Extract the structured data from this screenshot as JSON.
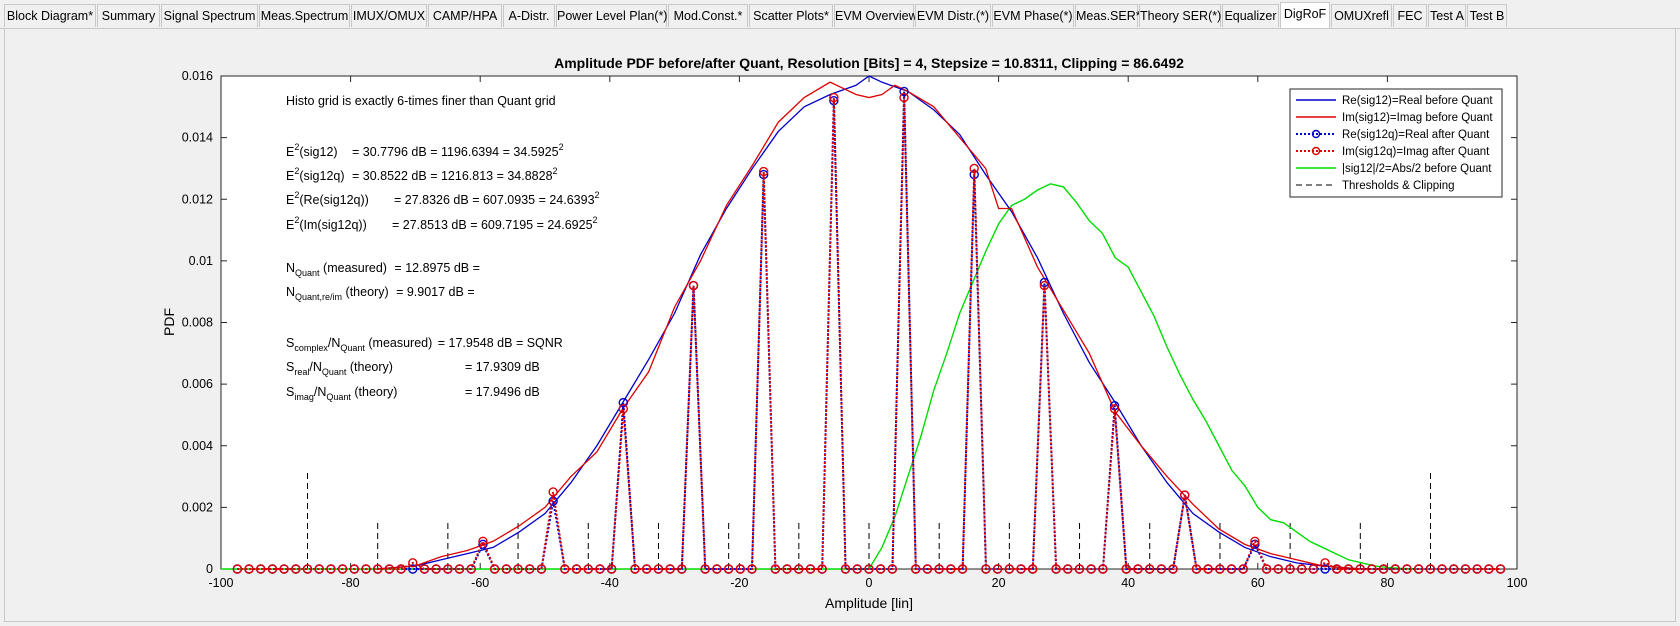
{
  "tabs": [
    {
      "label": "Block Diagram*"
    },
    {
      "label": "Summary"
    },
    {
      "label": "Signal Spectrum"
    },
    {
      "label": "Meas.Spectrum"
    },
    {
      "label": "IMUX/OMUX"
    },
    {
      "label": "CAMP/HPA"
    },
    {
      "label": "A-Distr."
    },
    {
      "label": "Power Level Plan(*)"
    },
    {
      "label": "Mod.Const.*"
    },
    {
      "label": "Scatter Plots*"
    },
    {
      "label": "EVM Overview"
    },
    {
      "label": "EVM Distr.(*)"
    },
    {
      "label": "EVM Phase(*)"
    },
    {
      "label": "Meas.SER*"
    },
    {
      "label": "Theory SER(*)"
    },
    {
      "label": "Equalizer"
    },
    {
      "label": "DigRoF"
    },
    {
      "label": "OMUXrefl"
    },
    {
      "label": "FEC"
    },
    {
      "label": "Test A"
    },
    {
      "label": "Test B"
    }
  ],
  "active_tab": "DigRoF",
  "colors": {
    "real_before": "#0000cc",
    "imag_before": "#dd0000",
    "abs_before": "#00dd00",
    "thresholds": "#000000"
  },
  "chart_data": {
    "type": "line",
    "title": "Amplitude PDF before/after Quant,  Resolution [Bits] = 4,  Stepsize = 10.8311,  Clipping = 86.6492",
    "xlabel": "Amplitude [lin]",
    "ylabel": "PDF",
    "xlim": [
      -100,
      100
    ],
    "ylim": [
      0,
      0.016
    ],
    "xticks": [
      -100,
      -80,
      -60,
      -40,
      -20,
      0,
      20,
      40,
      60,
      80,
      100
    ],
    "yticks": [
      0,
      0.002,
      0.004,
      0.006,
      0.008,
      0.01,
      0.012,
      0.014,
      0.016
    ],
    "ytick_labels": [
      "0",
      "0.002",
      "0.004",
      "0.006",
      "0.008",
      "0.01",
      "0.012",
      "0.014",
      "0.016"
    ],
    "grid": false,
    "legend_position": "top-right",
    "legend": [
      "Re(sig12)=Real before Quant",
      "Im(sig12)=Imag before Quant",
      "Re(sig12q)=Real after Quant",
      "Im(sig12q)=Imag after Quant",
      "|sig12|/2=Abs/2 before Quant",
      "Thresholds & Clipping"
    ],
    "series": [
      {
        "name": "Re(sig12)=Real before Quant",
        "x": [
          -76,
          -70,
          -66,
          -62,
          -58,
          -54,
          -50,
          -46,
          -42,
          -38,
          -34,
          -30,
          -26,
          -22,
          -18,
          -14,
          -10,
          -6,
          -2,
          0,
          2,
          6,
          10,
          14,
          18,
          22,
          26,
          30,
          34,
          38,
          42,
          46,
          50,
          54,
          58,
          62,
          66,
          70,
          76
        ],
        "y": [
          0,
          0.0001,
          0.0003,
          0.0005,
          0.0007,
          0.0012,
          0.0018,
          0.0028,
          0.004,
          0.0054,
          0.0068,
          0.0083,
          0.0102,
          0.0117,
          0.013,
          0.0142,
          0.015,
          0.0154,
          0.0157,
          0.016,
          0.0158,
          0.0155,
          0.0149,
          0.0141,
          0.0128,
          0.0116,
          0.0101,
          0.0083,
          0.0067,
          0.0054,
          0.004,
          0.0028,
          0.0018,
          0.0012,
          0.0007,
          0.0004,
          0.0002,
          0.0001,
          0
        ]
      },
      {
        "name": "Im(sig12)=Imag before Quant",
        "x": [
          -76,
          -70,
          -66,
          -62,
          -58,
          -54,
          -50,
          -46,
          -42,
          -38,
          -34,
          -30,
          -26,
          -22,
          -18,
          -14,
          -10,
          -6,
          -4,
          -2,
          0,
          2,
          4,
          6,
          10,
          14,
          18,
          20,
          22,
          26,
          30,
          34,
          38,
          42,
          46,
          50,
          54,
          58,
          62,
          66,
          70,
          76
        ],
        "y": [
          0,
          0.0001,
          0.0004,
          0.0006,
          0.0009,
          0.0014,
          0.002,
          0.003,
          0.0038,
          0.0052,
          0.0064,
          0.0085,
          0.01,
          0.0118,
          0.0131,
          0.0145,
          0.0153,
          0.0158,
          0.0156,
          0.0154,
          0.0153,
          0.0154,
          0.0157,
          0.0155,
          0.015,
          0.014,
          0.013,
          0.0117,
          0.0117,
          0.0098,
          0.0084,
          0.007,
          0.0051,
          0.004,
          0.003,
          0.0021,
          0.0013,
          0.0008,
          0.0005,
          0.0003,
          0.0001,
          0
        ]
      },
      {
        "name": "Re(sig12q)=Real after Quant",
        "type": "spikes",
        "x": [
          -97.48,
          -86.65,
          -75.82,
          -64.99,
          -59.57,
          -54.16,
          -48.74,
          -43.32,
          -37.91,
          -32.49,
          -27.08,
          -21.66,
          -16.25,
          -10.83,
          -5.42,
          0,
          5.42,
          10.83,
          16.25,
          21.66,
          27.08,
          32.49,
          37.91,
          43.32,
          48.74,
          54.16,
          59.57,
          64.99,
          75.82,
          86.65,
          97.48
        ],
        "y": [
          0,
          0,
          0,
          0,
          0.0008,
          0,
          0.0022,
          0,
          0.0054,
          0,
          0.0092,
          0,
          0.0128,
          0,
          0.0152,
          0,
          0.0155,
          0,
          0.0128,
          0,
          0.0093,
          0,
          0.0053,
          0,
          0.0024,
          0,
          0.0008,
          0,
          0,
          0,
          0
        ]
      },
      {
        "name": "Im(sig12q)=Imag after Quant",
        "type": "spikes",
        "x": [
          -97.48,
          -86.65,
          -75.82,
          -70.4,
          -64.99,
          -59.57,
          -54.16,
          -48.74,
          -43.32,
          -37.91,
          -32.49,
          -27.08,
          -21.66,
          -16.25,
          -10.83,
          -5.42,
          0,
          5.42,
          10.83,
          16.25,
          21.66,
          27.08,
          32.49,
          37.91,
          43.32,
          48.74,
          54.16,
          59.57,
          64.99,
          70.4,
          75.82,
          86.65,
          97.48
        ],
        "y": [
          0,
          0,
          0,
          0.0002,
          0,
          0.0009,
          0,
          0.0025,
          0,
          0.0052,
          0,
          0.0092,
          0,
          0.0129,
          0,
          0.0153,
          0,
          0.0153,
          0,
          0.013,
          0,
          0.0092,
          0,
          0.0052,
          0,
          0.0024,
          0,
          0.0009,
          0,
          0.0002,
          0,
          0,
          0
        ]
      },
      {
        "name": "|sig12|/2=Abs/2 before Quant",
        "x": [
          -100,
          0,
          2,
          4,
          6,
          8,
          10,
          12,
          14,
          16,
          18,
          20,
          22,
          24,
          26,
          28,
          30,
          32,
          34,
          36,
          38,
          40,
          42,
          44,
          46,
          48,
          50,
          52,
          54,
          56,
          58,
          60,
          62,
          64,
          66,
          68,
          70,
          72,
          74,
          76,
          78,
          80,
          82,
          84
        ],
        "y": [
          0,
          0,
          0.0007,
          0.0017,
          0.003,
          0.0043,
          0.0058,
          0.007,
          0.0083,
          0.0093,
          0.0103,
          0.0112,
          0.0118,
          0.012,
          0.0123,
          0.0125,
          0.0124,
          0.0119,
          0.0113,
          0.0109,
          0.0101,
          0.0098,
          0.009,
          0.0082,
          0.0072,
          0.0063,
          0.0055,
          0.0048,
          0.004,
          0.0032,
          0.0027,
          0.002,
          0.0016,
          0.0015,
          0.0012,
          0.0009,
          0.0007,
          0.0005,
          0.0003,
          0.0002,
          0.0001,
          5e-05,
          2e-05,
          0
        ]
      },
      {
        "name": "Thresholds & Clipping",
        "type": "vlines",
        "x": [
          -86.65,
          -75.82,
          -64.99,
          -54.16,
          -43.32,
          -32.49,
          -21.66,
          -10.83,
          0,
          10.83,
          21.66,
          32.49,
          43.32,
          54.16,
          64.99,
          75.82,
          86.65
        ],
        "y": [
          0.0032,
          0.0016,
          0.0016,
          0.0016,
          0.0016,
          0.0016,
          0.0016,
          0.0016,
          0.0016,
          0.0016,
          0.0016,
          0.0016,
          0.0016,
          0.0016,
          0.0016,
          0.0016,
          0.0032
        ]
      }
    ],
    "annotations": {
      "histo_note": "Histo grid is exactly 6-times finer than Quant grid",
      "energy_rows": [
        {
          "pre": "E",
          "sup": "2",
          "label": "(sig12)",
          "value": "= 30.7796 dB = 1196.6394 = 34.5925",
          "post_sup": "2"
        },
        {
          "pre": "E",
          "sup": "2",
          "label": "(sig12q)",
          "value": "= 30.8522 dB = 1216.813 = 34.8828",
          "post_sup": "2"
        },
        {
          "pre": "E",
          "sup": "2",
          "label": "(Re(sig12q))",
          "value": "= 27.8326 dB = 607.0935 = 24.6393",
          "post_sup": "2"
        },
        {
          "pre": "E",
          "sup": "2",
          "label": "(Im(sig12q))",
          "value": "= 27.8513 dB = 609.7195 = 24.6925",
          "post_sup": "2"
        }
      ],
      "noise_rows": [
        {
          "pre": "N",
          "sub": "Quant",
          "label": " (measured)",
          "value": "= 12.8975 dB ="
        },
        {
          "pre": "N",
          "sub": "Quant,re/im",
          "label": " (theory)",
          "value": "= 9.9017 dB ="
        }
      ],
      "snr_rows": [
        {
          "pre": "S",
          "sub1": "complex",
          "mid": "/N",
          "sub2": "Quant",
          "label": " (measured)",
          "value": "= 17.9548 dB = SQNR"
        },
        {
          "pre": "S",
          "sub1": "real",
          "mid": "/N",
          "sub2": "Quant",
          "label": " (theory)",
          "value": "= 17.9309 dB"
        },
        {
          "pre": "S",
          "sub1": "imag",
          "mid": "/N",
          "sub2": "Quant",
          "label": " (theory)",
          "value": "= 17.9496 dB"
        }
      ]
    }
  }
}
